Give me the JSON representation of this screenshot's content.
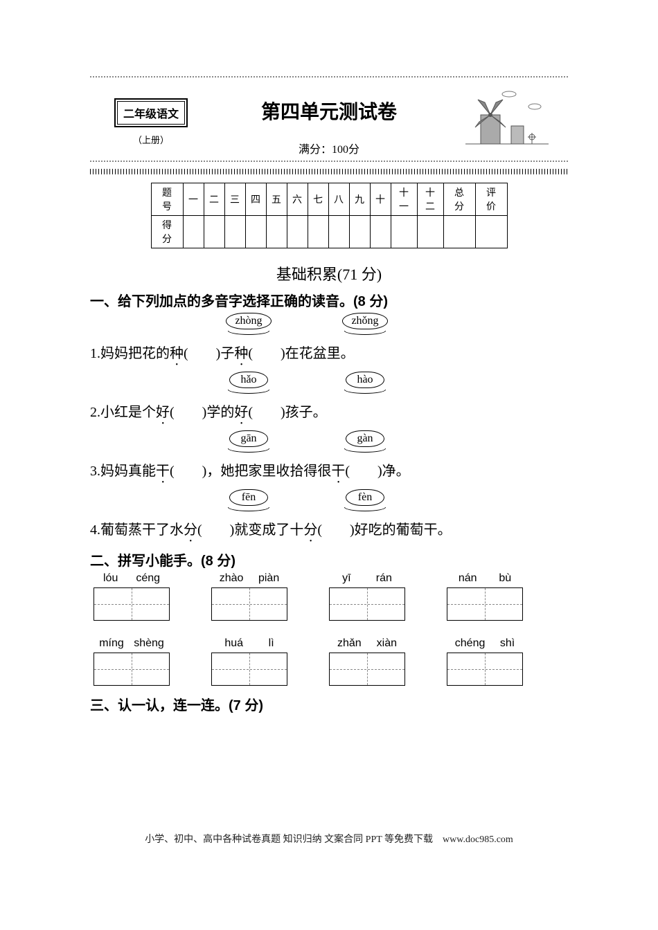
{
  "header": {
    "grade": "二年级语文",
    "book": "（上册）",
    "title": "第四单元测试卷",
    "fullscore": "满分：100分"
  },
  "scoreTable": {
    "rowLabel1": "题　号",
    "rowLabel2": "得　分",
    "cols": [
      "一",
      "二",
      "三",
      "四",
      "五",
      "六",
      "七",
      "八",
      "九",
      "十",
      "十一",
      "十二",
      "总　分",
      "评　价"
    ]
  },
  "sectionA": "基础积累(71 分)",
  "q1": {
    "heading": "一、给下列加点的多音字选择正确的读音。(8 分)",
    "items": [
      {
        "opts": [
          "zhòng",
          "zhǒng"
        ],
        "num": "1.",
        "a": "妈妈把花的",
        "d1": "种",
        "b": "(　　)子",
        "d2": "种",
        "c": "(　　)在花盆里。"
      },
      {
        "opts": [
          "hǎo",
          "hào"
        ],
        "num": "2.",
        "a": "小红是个",
        "d1": "好",
        "b": "(　　)学的",
        "d2": "好",
        "c": "(　　)孩子。"
      },
      {
        "opts": [
          "gān",
          "gàn"
        ],
        "num": "3.",
        "a": "妈妈真能",
        "d1": "干",
        "b": "(　　)，她把家里收拾得很",
        "d2": "干",
        "c": "(　　)净。"
      },
      {
        "opts": [
          "fēn",
          "fèn"
        ],
        "num": "4.",
        "a": "葡萄蒸干了水",
        "d1": "分",
        "b": "(　　)就变成了十",
        "d2": "分",
        "c": "(　　)好吃的葡萄干。"
      }
    ]
  },
  "q2": {
    "heading": "二、拼写小能手。(8 分)",
    "items": [
      {
        "s1": "lóu",
        "s2": "céng"
      },
      {
        "s1": "zhào",
        "s2": "piàn"
      },
      {
        "s1": "yī",
        "s2": "rán"
      },
      {
        "s1": "nán",
        "s2": "bù"
      },
      {
        "s1": "míng",
        "s2": "shèng"
      },
      {
        "s1": "huá",
        "s2": "lì"
      },
      {
        "s1": "zhǎn",
        "s2": "xiàn"
      },
      {
        "s1": "chéng",
        "s2": "shì"
      }
    ]
  },
  "q3": {
    "heading": "三、认一认，连一连。(7 分)"
  },
  "footer": "小学、初中、高中各种试卷真题 知识归纳 文案合同 PPT 等免费下载　www.doc985.com"
}
